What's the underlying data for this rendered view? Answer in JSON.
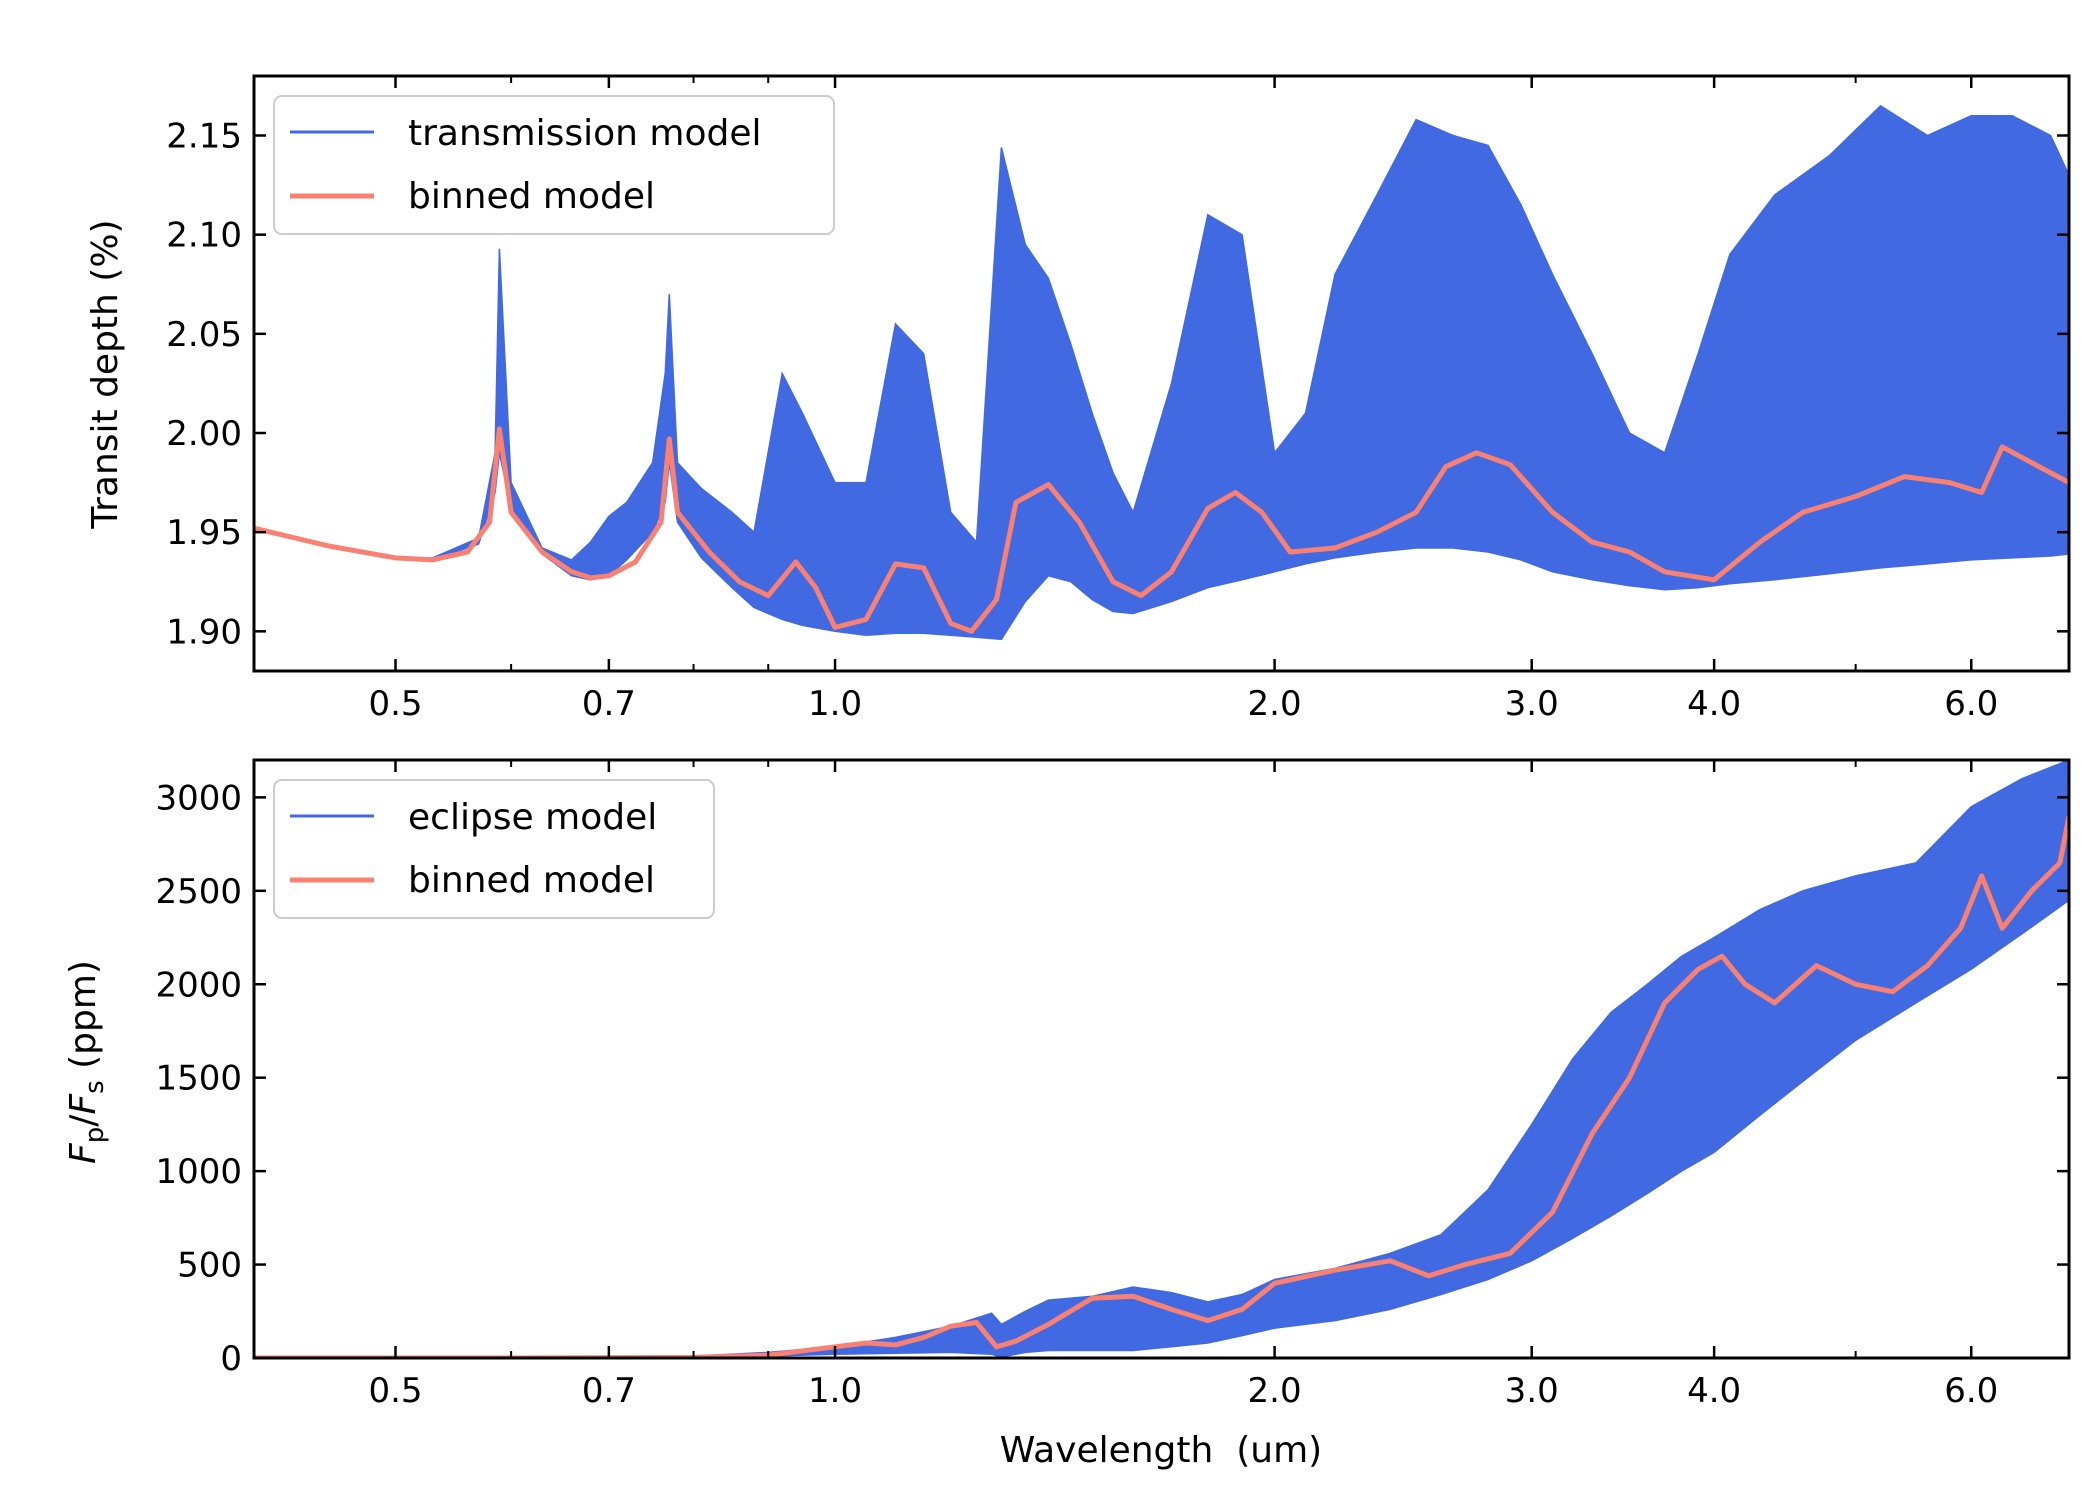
{
  "chart_data": [
    {
      "type": "line",
      "panel": "top",
      "xscale": "log",
      "xlim": [
        0.4,
        7.0
      ],
      "ylim": [
        1.88,
        2.18
      ],
      "xticks": [
        0.5,
        0.7,
        1.0,
        2.0,
        3.0,
        4.0,
        6.0
      ],
      "xtick_labels": [
        "0.5",
        "0.7",
        "1.0",
        "2.0",
        "3.0",
        "4.0",
        "6.0"
      ],
      "yticks": [
        1.9,
        1.95,
        2.0,
        2.05,
        2.1,
        2.15
      ],
      "ytick_labels": [
        "1.90",
        "1.95",
        "2.00",
        "2.05",
        "2.10",
        "2.15"
      ],
      "ylabel": "Transit depth (%)",
      "xlabel": "",
      "legend_position": "upper-left",
      "grid": false,
      "series": [
        {
          "name": "transmission model",
          "color": "#4169e1",
          "style": "high-resolution spectrum, shown as min-max envelope",
          "x": [
            0.4,
            0.45,
            0.5,
            0.53,
            0.57,
            0.585,
            0.589,
            0.6,
            0.63,
            0.66,
            0.68,
            0.7,
            0.72,
            0.75,
            0.765,
            0.77,
            0.78,
            0.81,
            0.85,
            0.88,
            0.92,
            0.95,
            1.0,
            1.05,
            1.1,
            1.15,
            1.2,
            1.25,
            1.3,
            1.35,
            1.4,
            1.45,
            1.5,
            1.55,
            1.6,
            1.7,
            1.8,
            1.9,
            2.0,
            2.1,
            2.2,
            2.35,
            2.5,
            2.65,
            2.8,
            2.95,
            3.1,
            3.3,
            3.5,
            3.7,
            3.9,
            4.1,
            4.4,
            4.8,
            5.2,
            5.6,
            6.0,
            6.4,
            6.8,
            7.0
          ],
          "y_low": [
            1.952,
            1.943,
            1.937,
            1.936,
            1.944,
            1.97,
            1.99,
            1.962,
            1.939,
            1.928,
            1.926,
            1.928,
            1.936,
            1.95,
            1.965,
            1.985,
            1.955,
            1.937,
            1.922,
            1.912,
            1.906,
            1.903,
            1.9,
            1.898,
            1.899,
            1.899,
            1.898,
            1.897,
            1.896,
            1.915,
            1.928,
            1.925,
            1.916,
            1.91,
            1.909,
            1.915,
            1.922,
            1.926,
            1.93,
            1.934,
            1.937,
            1.94,
            1.942,
            1.942,
            1.94,
            1.936,
            1.93,
            1.926,
            1.923,
            1.921,
            1.922,
            1.924,
            1.926,
            1.929,
            1.932,
            1.934,
            1.936,
            1.937,
            1.938,
            1.939
          ],
          "y_high": [
            1.952,
            1.943,
            1.937,
            1.937,
            1.947,
            1.99,
            2.093,
            1.975,
            1.942,
            1.936,
            1.945,
            1.958,
            1.965,
            1.985,
            2.03,
            2.07,
            1.985,
            1.972,
            1.96,
            1.95,
            2.03,
            2.01,
            1.975,
            1.975,
            2.055,
            2.04,
            1.96,
            1.945,
            2.144,
            2.095,
            2.078,
            2.045,
            2.01,
            1.98,
            1.96,
            2.025,
            2.11,
            2.1,
            1.99,
            2.01,
            2.08,
            2.12,
            2.158,
            2.15,
            2.145,
            2.115,
            2.08,
            2.04,
            2.0,
            1.99,
            2.04,
            2.09,
            2.12,
            2.14,
            2.165,
            2.15,
            2.16,
            2.16,
            2.15,
            2.13
          ]
        },
        {
          "name": "binned model",
          "color": "#fa8072",
          "x": [
            0.4,
            0.45,
            0.5,
            0.53,
            0.56,
            0.58,
            0.589,
            0.6,
            0.63,
            0.66,
            0.68,
            0.7,
            0.73,
            0.76,
            0.77,
            0.78,
            0.82,
            0.86,
            0.9,
            0.94,
            0.97,
            1.0,
            1.05,
            1.1,
            1.15,
            1.2,
            1.24,
            1.29,
            1.33,
            1.4,
            1.47,
            1.55,
            1.62,
            1.7,
            1.8,
            1.88,
            1.96,
            2.05,
            2.2,
            2.35,
            2.5,
            2.62,
            2.75,
            2.9,
            3.1,
            3.3,
            3.5,
            3.7,
            4.0,
            4.3,
            4.6,
            5.0,
            5.4,
            5.8,
            6.1,
            6.3,
            6.6,
            7.0
          ],
          "y": [
            1.952,
            1.943,
            1.937,
            1.936,
            1.94,
            1.955,
            2.002,
            1.96,
            1.94,
            1.93,
            1.927,
            1.928,
            1.935,
            1.955,
            1.997,
            1.96,
            1.94,
            1.925,
            1.918,
            1.935,
            1.922,
            1.902,
            1.906,
            1.934,
            1.932,
            1.904,
            1.9,
            1.916,
            1.965,
            1.974,
            1.955,
            1.925,
            1.918,
            1.93,
            1.962,
            1.97,
            1.96,
            1.94,
            1.942,
            1.95,
            1.96,
            1.983,
            1.99,
            1.984,
            1.96,
            1.945,
            1.94,
            1.93,
            1.926,
            1.945,
            1.96,
            1.968,
            1.978,
            1.975,
            1.97,
            1.993,
            1.985,
            1.975
          ]
        }
      ]
    },
    {
      "type": "line",
      "panel": "bottom",
      "xscale": "log",
      "xlim": [
        0.4,
        7.0
      ],
      "ylim": [
        0,
        3200
      ],
      "xticks": [
        0.5,
        0.7,
        1.0,
        2.0,
        3.0,
        4.0,
        6.0
      ],
      "xtick_labels": [
        "0.5",
        "0.7",
        "1.0",
        "2.0",
        "3.0",
        "4.0",
        "6.0"
      ],
      "yticks": [
        0,
        500,
        1000,
        1500,
        2000,
        2500,
        3000
      ],
      "ytick_labels": [
        "0",
        "500",
        "1000",
        "1500",
        "2000",
        "2500",
        "3000"
      ],
      "ylabel": "Fp/Fs (ppm)",
      "ylabel_main_1": "F",
      "ylabel_sub_1": "p",
      "ylabel_slash": "/",
      "ylabel_main_2": "F",
      "ylabel_sub_2": "s",
      "ylabel_units": " (ppm)",
      "xlabel": "Wavelength  (um)",
      "legend_position": "upper-left",
      "grid": false,
      "series": [
        {
          "name": "eclipse model",
          "color": "#4169e1",
          "style": "high-resolution spectrum, shown as min-max envelope",
          "x": [
            0.4,
            0.6,
            0.8,
            0.9,
            1.0,
            1.1,
            1.2,
            1.28,
            1.3,
            1.35,
            1.4,
            1.5,
            1.6,
            1.7,
            1.8,
            1.9,
            2.0,
            2.2,
            2.4,
            2.6,
            2.8,
            3.0,
            3.2,
            3.4,
            3.6,
            3.8,
            4.0,
            4.3,
            4.6,
            5.0,
            5.5,
            6.0,
            6.5,
            7.0
          ],
          "y_low": [
            0,
            0,
            3,
            10,
            20,
            25,
            30,
            20,
            5,
            30,
            40,
            40,
            40,
            60,
            80,
            120,
            160,
            200,
            260,
            340,
            420,
            520,
            640,
            760,
            880,
            1000,
            1100,
            1300,
            1480,
            1700,
            1900,
            2080,
            2270,
            2450
          ],
          "y_high": [
            0,
            0,
            10,
            30,
            60,
            110,
            170,
            240,
            180,
            250,
            310,
            330,
            380,
            350,
            300,
            340,
            420,
            480,
            560,
            660,
            900,
            1250,
            1600,
            1850,
            2000,
            2150,
            2250,
            2400,
            2500,
            2580,
            2650,
            2950,
            3100,
            3200
          ]
        },
        {
          "name": "binned model",
          "color": "#fa8072",
          "x": [
            0.4,
            0.6,
            0.8,
            0.9,
            1.0,
            1.05,
            1.1,
            1.15,
            1.2,
            1.25,
            1.29,
            1.33,
            1.4,
            1.5,
            1.6,
            1.7,
            1.8,
            1.9,
            2.0,
            2.2,
            2.4,
            2.55,
            2.7,
            2.9,
            3.1,
            3.3,
            3.5,
            3.7,
            3.9,
            4.05,
            4.2,
            4.4,
            4.7,
            5.0,
            5.3,
            5.6,
            5.9,
            6.1,
            6.3,
            6.6,
            6.9,
            7.0
          ],
          "y": [
            0,
            0,
            3,
            15,
            60,
            80,
            70,
            110,
            170,
            190,
            60,
            90,
            180,
            320,
            330,
            260,
            200,
            260,
            400,
            470,
            520,
            440,
            500,
            560,
            780,
            1200,
            1500,
            1900,
            2080,
            2150,
            2000,
            1900,
            2100,
            2000,
            1960,
            2100,
            2300,
            2580,
            2300,
            2500,
            2650,
            2900
          ]
        }
      ]
    }
  ]
}
